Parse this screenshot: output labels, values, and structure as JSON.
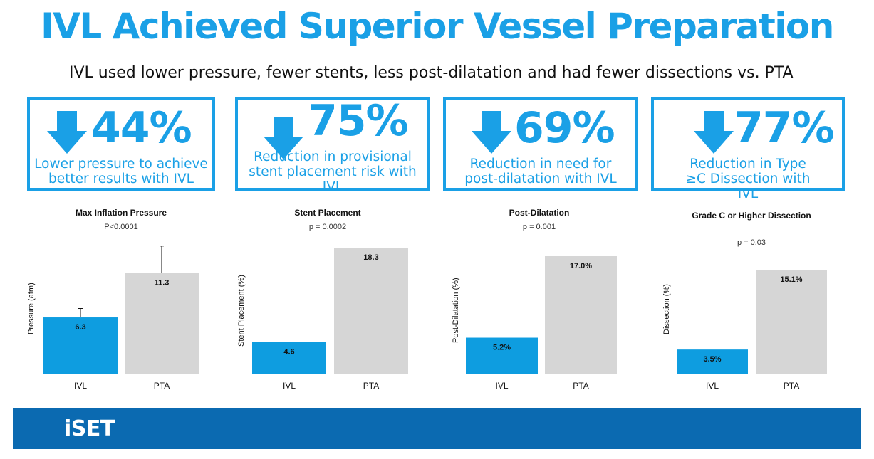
{
  "title": "IVL Achieved Superior Vessel Preparation",
  "subtitle": "IVL used lower pressure, fewer stents, less post-dilatation and had fewer dissections vs. PTA",
  "colors": {
    "accent": "#1aa0e6",
    "bar_ivl": "#0e9de0",
    "bar_pta": "#d6d6d6",
    "footer": "#0b6ab1"
  },
  "stats": [
    {
      "value": "44%",
      "description": "Lower pressure to achieve better results with IVL",
      "icon": "down-arrow-icon"
    },
    {
      "value": "75%",
      "description": "Reduction in provisional stent placement risk with IVL",
      "icon": "down-arrow-icon"
    },
    {
      "value": "69%",
      "description": "Reduction in need for post-dilatation with IVL",
      "icon": "down-arrow-icon"
    },
    {
      "value": "77%",
      "description": "Reduction in Type ≥C Dissection with IVL",
      "icon": "down-arrow-icon"
    }
  ],
  "chart_data": [
    {
      "type": "bar",
      "title": "Max Inflation Pressure",
      "p_value": "P<0.0001",
      "ylabel": "Pressure (atm)",
      "categories": [
        "IVL",
        "PTA"
      ],
      "values": [
        6.3,
        11.3
      ],
      "data_labels": [
        "6.3",
        "11.3"
      ],
      "error_upper": [
        7.3,
        14.3
      ],
      "ylim": [
        0,
        15
      ]
    },
    {
      "type": "bar",
      "title": "Stent Placement",
      "p_value": "p = 0.0002",
      "ylabel": "Stent Placement (%)",
      "categories": [
        "IVL",
        "PTA"
      ],
      "values": [
        4.6,
        18.3
      ],
      "data_labels": [
        "4.6",
        "18.3"
      ],
      "ylim": [
        0,
        18.3
      ]
    },
    {
      "type": "bar",
      "title": "Post-Dilatation",
      "p_value": "p = 0.001",
      "ylabel": "Post-Dilatation (%)",
      "categories": [
        "IVL",
        "PTA"
      ],
      "values": [
        5.2,
        17.0
      ],
      "data_labels": [
        "5.2%",
        "17.0%"
      ],
      "ylim": [
        0,
        17.0
      ]
    },
    {
      "type": "bar",
      "title": "Grade C or Higher Dissection",
      "p_value": "p = 0.03",
      "ylabel": "Dissection (%)",
      "categories": [
        "IVL",
        "PTA"
      ],
      "values": [
        3.5,
        15.1
      ],
      "data_labels": [
        "3.5%",
        "15.1%"
      ],
      "ylim": [
        0,
        15.1
      ]
    }
  ],
  "footer": {
    "logo_text": "iSET"
  }
}
